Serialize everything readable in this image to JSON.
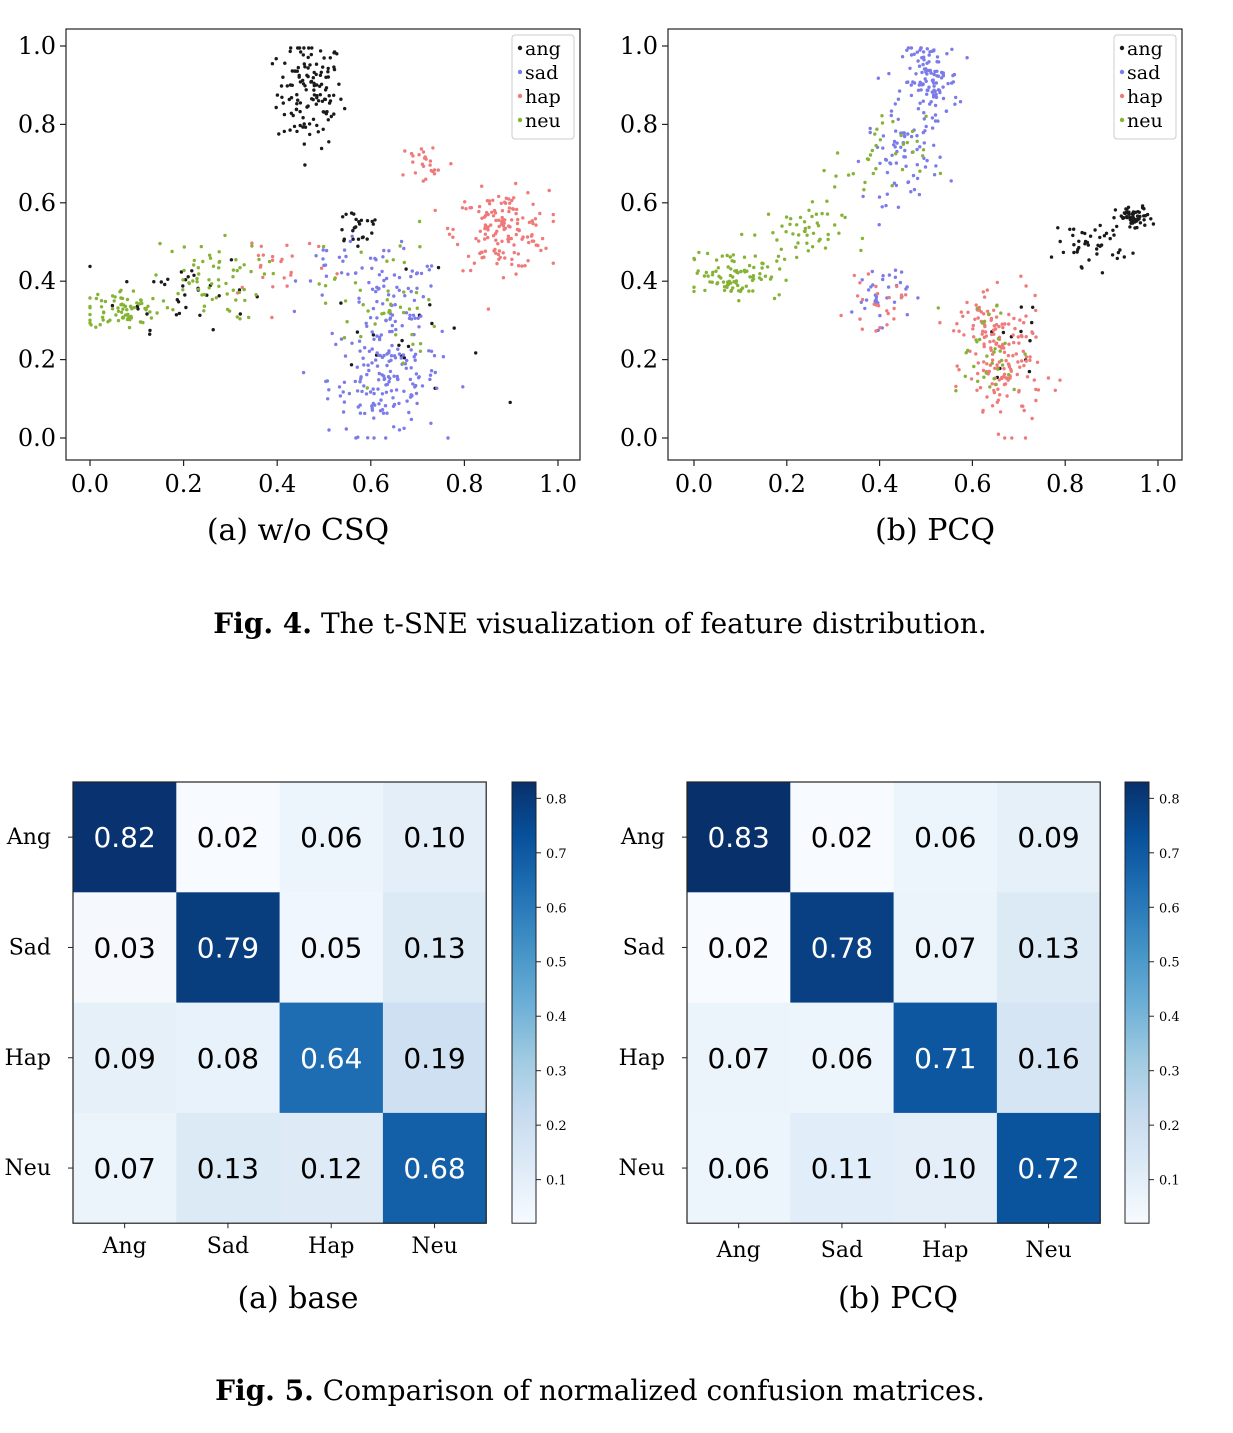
{
  "figure4": {
    "panels": [
      {
        "subcaption": "(a) w/o CSQ",
        "xticks": [
          "0.0",
          "0.2",
          "0.4",
          "0.6",
          "0.8",
          "1.0"
        ],
        "yticks": [
          "0.0",
          "0.2",
          "0.4",
          "0.6",
          "0.8",
          "1.0"
        ]
      },
      {
        "subcaption": "(b) PCQ",
        "xticks": [
          "0.0",
          "0.2",
          "0.4",
          "0.6",
          "0.8",
          "1.0"
        ],
        "yticks": [
          "0.0",
          "0.2",
          "0.4",
          "0.6",
          "0.8",
          "1.0"
        ]
      }
    ],
    "legend": [
      "ang",
      "sad",
      "hap",
      "neu"
    ],
    "caption_label": "Fig. 4.",
    "caption_text": " The t-SNE visualization of feature distribution."
  },
  "figure5": {
    "caption_label": "Fig. 5.",
    "caption_text": " Comparison of normalized confusion matrices.",
    "colorbar_ticks": [
      "0.8",
      "0.7",
      "0.6",
      "0.5",
      "0.4",
      "0.3",
      "0.2",
      "0.1"
    ]
  },
  "colors": {
    "ang": "#1a1a1a",
    "sad": "#7b7bea",
    "hap": "#f07a7a",
    "neu": "#86b336"
  },
  "chart_data": [
    {
      "type": "scatter",
      "title": "(a) w/o CSQ",
      "xlim": [
        0,
        1
      ],
      "ylim": [
        0,
        1
      ],
      "series": [
        {
          "name": "ang",
          "clusters": [
            {
              "x": 0.47,
              "y": 0.88,
              "sx": 0.035,
              "sy": 0.07,
              "n": 130
            },
            {
              "x": 0.57,
              "y": 0.54,
              "sx": 0.03,
              "sy": 0.03,
              "n": 25
            },
            {
              "x": 0.2,
              "y": 0.38,
              "sx": 0.07,
              "sy": 0.05,
              "n": 35
            },
            {
              "x": 0.68,
              "y": 0.25,
              "sx": 0.08,
              "sy": 0.08,
              "n": 20
            }
          ]
        },
        {
          "name": "sad",
          "clusters": [
            {
              "x": 0.63,
              "y": 0.15,
              "sx": 0.06,
              "sy": 0.07,
              "n": 160
            },
            {
              "x": 0.65,
              "y": 0.33,
              "sx": 0.05,
              "sy": 0.07,
              "n": 70
            },
            {
              "x": 0.55,
              "y": 0.45,
              "sx": 0.05,
              "sy": 0.05,
              "n": 25
            }
          ]
        },
        {
          "name": "hap",
          "clusters": [
            {
              "x": 0.88,
              "y": 0.53,
              "sx": 0.05,
              "sy": 0.05,
              "n": 150
            },
            {
              "x": 0.72,
              "y": 0.7,
              "sx": 0.03,
              "sy": 0.03,
              "n": 25
            },
            {
              "x": 0.4,
              "y": 0.45,
              "sx": 0.06,
              "sy": 0.05,
              "n": 25
            }
          ]
        },
        {
          "name": "neu",
          "clusters": [
            {
              "x": 0.07,
              "y": 0.33,
              "sx": 0.04,
              "sy": 0.025,
              "n": 75
            },
            {
              "x": 0.25,
              "y": 0.4,
              "sx": 0.06,
              "sy": 0.05,
              "n": 65
            },
            {
              "x": 0.62,
              "y": 0.35,
              "sx": 0.06,
              "sy": 0.1,
              "n": 45
            }
          ]
        }
      ]
    },
    {
      "type": "scatter",
      "title": "(b) PCQ",
      "xlim": [
        0,
        1
      ],
      "ylim": [
        0,
        1
      ],
      "series": [
        {
          "name": "ang",
          "clusters": [
            {
              "x": 0.95,
              "y": 0.56,
              "sx": 0.02,
              "sy": 0.015,
              "n": 55
            },
            {
              "x": 0.86,
              "y": 0.5,
              "sx": 0.04,
              "sy": 0.03,
              "n": 45
            },
            {
              "x": 0.7,
              "y": 0.25,
              "sx": 0.03,
              "sy": 0.05,
              "n": 12
            }
          ]
        },
        {
          "name": "sad",
          "clusters": [
            {
              "x": 0.51,
              "y": 0.91,
              "sx": 0.03,
              "sy": 0.05,
              "n": 120
            },
            {
              "x": 0.45,
              "y": 0.72,
              "sx": 0.04,
              "sy": 0.06,
              "n": 70
            },
            {
              "x": 0.4,
              "y": 0.37,
              "sx": 0.03,
              "sy": 0.04,
              "n": 35
            }
          ]
        },
        {
          "name": "hap",
          "clusters": [
            {
              "x": 0.67,
              "y": 0.18,
              "sx": 0.04,
              "sy": 0.08,
              "n": 140
            },
            {
              "x": 0.62,
              "y": 0.3,
              "sx": 0.04,
              "sy": 0.03,
              "n": 40
            },
            {
              "x": 0.39,
              "y": 0.34,
              "sx": 0.03,
              "sy": 0.03,
              "n": 25
            }
          ]
        },
        {
          "name": "neu",
          "clusters": [
            {
              "x": 0.09,
              "y": 0.42,
              "sx": 0.05,
              "sy": 0.03,
              "n": 90
            },
            {
              "x": 0.22,
              "y": 0.52,
              "sx": 0.05,
              "sy": 0.04,
              "n": 50
            },
            {
              "x": 0.4,
              "y": 0.7,
              "sx": 0.05,
              "sy": 0.06,
              "n": 35
            },
            {
              "x": 0.63,
              "y": 0.22,
              "sx": 0.04,
              "sy": 0.07,
              "n": 35
            }
          ]
        }
      ]
    },
    {
      "type": "heatmap",
      "title": "(a) base",
      "rows": [
        "Ang",
        "Sad",
        "Hap",
        "Neu"
      ],
      "cols": [
        "Ang",
        "Sad",
        "Hap",
        "Neu"
      ],
      "values": [
        [
          0.82,
          0.02,
          0.06,
          0.1
        ],
        [
          0.03,
          0.79,
          0.05,
          0.13
        ],
        [
          0.09,
          0.08,
          0.64,
          0.19
        ],
        [
          0.07,
          0.13,
          0.12,
          0.68
        ]
      ],
      "labels": [
        [
          "0.82",
          "0.02",
          "0.06",
          "0.10"
        ],
        [
          "0.03",
          "0.79",
          "0.05",
          "0.13"
        ],
        [
          "0.09",
          "0.08",
          "0.64",
          "0.19"
        ],
        [
          "0.07",
          "0.13",
          "0.12",
          "0.68"
        ]
      ],
      "colormap": "Blues",
      "vmin": 0.02,
      "vmax": 0.83
    },
    {
      "type": "heatmap",
      "title": "(b) PCQ",
      "rows": [
        "Ang",
        "Sad",
        "Hap",
        "Neu"
      ],
      "cols": [
        "Ang",
        "Sad",
        "Hap",
        "Neu"
      ],
      "values": [
        [
          0.83,
          0.02,
          0.06,
          0.09
        ],
        [
          0.02,
          0.78,
          0.07,
          0.13
        ],
        [
          0.07,
          0.06,
          0.71,
          0.16
        ],
        [
          0.06,
          0.11,
          0.1,
          0.72
        ]
      ],
      "labels": [
        [
          "0.83",
          "0.02",
          "0.06",
          "0.09"
        ],
        [
          "0.02",
          "0.78",
          "0.07",
          "0.13"
        ],
        [
          "0.07",
          "0.06",
          "0.71",
          "0.16"
        ],
        [
          "0.06",
          "0.11",
          "0.10",
          "0.72"
        ]
      ],
      "colormap": "Blues",
      "vmin": 0.02,
      "vmax": 0.83
    }
  ]
}
